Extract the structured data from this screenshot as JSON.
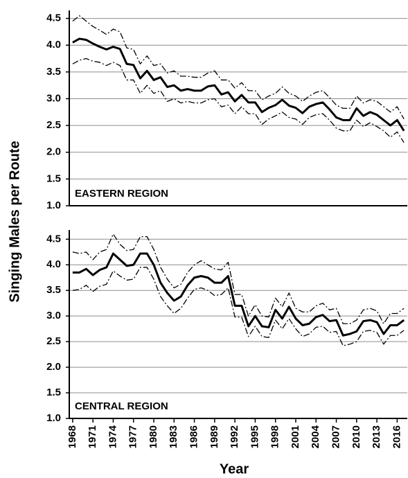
{
  "chart_data": [
    {
      "type": "line",
      "annotation": "EASTERN REGION",
      "y_label": "Singing Males per Route",
      "x": [
        1968,
        1969,
        1970,
        1971,
        1972,
        1973,
        1974,
        1975,
        1976,
        1977,
        1978,
        1979,
        1980,
        1981,
        1982,
        1983,
        1984,
        1985,
        1986,
        1987,
        1988,
        1989,
        1990,
        1991,
        1992,
        1993,
        1994,
        1995,
        1996,
        1997,
        1998,
        1999,
        2000,
        2001,
        2002,
        2003,
        2004,
        2005,
        2006,
        2007,
        2008,
        2009,
        2010,
        2011,
        2012,
        2013,
        2014,
        2015,
        2016,
        2017
      ],
      "xlim": [
        1967.5,
        2017.5
      ],
      "ylim": [
        1.0,
        4.65
      ],
      "yticks": [
        {
          "value": 1,
          "label": "1.0"
        },
        1.5,
        {
          "value": 2,
          "label": "2.0"
        },
        2.5,
        {
          "value": 3,
          "label": "3.0"
        },
        3.5,
        {
          "value": 4,
          "label": "4.0"
        },
        4.5
      ],
      "grid": true,
      "series": [
        {
          "color": "#000000",
          "dash": "solid",
          "values": [
            4.05,
            4.12,
            4.1,
            4.03,
            3.97,
            3.92,
            3.97,
            3.93,
            3.65,
            3.63,
            3.38,
            3.52,
            3.35,
            3.4,
            3.22,
            3.25,
            3.15,
            3.18,
            3.15,
            3.15,
            3.23,
            3.25,
            3.08,
            3.12,
            2.95,
            3.07,
            2.93,
            2.93,
            2.75,
            2.83,
            2.88,
            2.98,
            2.87,
            2.83,
            2.73,
            2.85,
            2.9,
            2.93,
            2.8,
            2.65,
            2.6,
            2.6,
            2.82,
            2.68,
            2.75,
            2.7,
            2.6,
            2.5,
            2.6,
            2.4
          ]
        },
        {
          "color": "#000000",
          "dash": "dashdot",
          "values": [
            4.45,
            4.55,
            4.45,
            4.35,
            4.28,
            4.2,
            4.3,
            4.25,
            3.95,
            3.92,
            3.65,
            3.8,
            3.62,
            3.65,
            3.48,
            3.52,
            3.42,
            3.42,
            3.4,
            3.4,
            3.48,
            3.52,
            3.35,
            3.35,
            3.2,
            3.3,
            3.15,
            3.15,
            2.98,
            3.05,
            3.1,
            3.22,
            3.1,
            3.05,
            2.95,
            3.05,
            3.12,
            3.15,
            3.02,
            2.88,
            2.82,
            2.82,
            3.05,
            2.92,
            2.98,
            2.95,
            2.85,
            2.75,
            2.85,
            2.62
          ]
        },
        {
          "color": "#000000",
          "dash": "dashdot",
          "values": [
            3.65,
            3.72,
            3.75,
            3.7,
            3.68,
            3.62,
            3.68,
            3.62,
            3.35,
            3.35,
            3.1,
            3.25,
            3.1,
            3.15,
            2.95,
            3.0,
            2.92,
            2.95,
            2.92,
            2.92,
            2.98,
            3.0,
            2.85,
            2.88,
            2.72,
            2.85,
            2.72,
            2.72,
            2.52,
            2.62,
            2.68,
            2.75,
            2.65,
            2.62,
            2.52,
            2.65,
            2.7,
            2.72,
            2.6,
            2.45,
            2.4,
            2.4,
            2.6,
            2.48,
            2.55,
            2.48,
            2.4,
            2.28,
            2.38,
            2.18
          ]
        }
      ]
    },
    {
      "type": "line",
      "annotation": "CENTRAL REGION",
      "x_label": "Year",
      "x": [
        1968,
        1969,
        1970,
        1971,
        1972,
        1973,
        1974,
        1975,
        1976,
        1977,
        1978,
        1979,
        1980,
        1981,
        1982,
        1983,
        1984,
        1985,
        1986,
        1987,
        1988,
        1989,
        1990,
        1991,
        1992,
        1993,
        1994,
        1995,
        1996,
        1997,
        1998,
        1999,
        2000,
        2001,
        2002,
        2003,
        2004,
        2005,
        2006,
        2007,
        2008,
        2009,
        2010,
        2011,
        2012,
        2013,
        2014,
        2015,
        2016,
        2017
      ],
      "xlim": [
        1967.5,
        2017.5
      ],
      "xticks": [
        1968,
        1971,
        1974,
        1977,
        1980,
        1983,
        1986,
        1989,
        1992,
        1995,
        1998,
        2001,
        2004,
        2007,
        2010,
        2013,
        2016
      ],
      "ylim": [
        1.0,
        4.68
      ],
      "yticks": [
        {
          "value": 1,
          "label": "1.0"
        },
        1.5,
        {
          "value": 2,
          "label": "2.0"
        },
        2.5,
        {
          "value": 3,
          "label": "3.0"
        },
        3.5,
        {
          "value": 4,
          "label": "4.0"
        },
        4.5
      ],
      "grid": true,
      "series": [
        {
          "color": "#000000",
          "dash": "solid",
          "values": [
            3.85,
            3.85,
            3.92,
            3.8,
            3.9,
            3.95,
            4.22,
            4.1,
            3.98,
            4.0,
            4.22,
            4.22,
            4.0,
            3.65,
            3.45,
            3.3,
            3.38,
            3.6,
            3.75,
            3.78,
            3.75,
            3.65,
            3.65,
            3.78,
            3.2,
            3.2,
            2.8,
            3.0,
            2.8,
            2.78,
            3.12,
            2.95,
            3.18,
            2.95,
            2.82,
            2.85,
            2.98,
            3.02,
            2.9,
            2.92,
            2.62,
            2.65,
            2.7,
            2.9,
            2.92,
            2.88,
            2.65,
            2.82,
            2.82,
            2.92
          ]
        },
        {
          "color": "#000000",
          "dash": "dashdot",
          "values": [
            4.25,
            4.22,
            4.25,
            4.1,
            4.25,
            4.3,
            4.6,
            4.4,
            4.28,
            4.3,
            4.55,
            4.55,
            4.3,
            3.95,
            3.72,
            3.55,
            3.62,
            3.85,
            4.0,
            4.08,
            4.0,
            3.92,
            3.9,
            4.05,
            3.42,
            3.42,
            3.0,
            3.22,
            3.0,
            2.98,
            3.35,
            3.18,
            3.45,
            3.15,
            3.08,
            3.08,
            3.2,
            3.25,
            3.12,
            3.15,
            2.85,
            2.85,
            2.92,
            3.12,
            3.15,
            3.1,
            2.85,
            3.05,
            3.05,
            3.15
          ]
        },
        {
          "color": "#000000",
          "dash": "dashdot",
          "values": [
            3.5,
            3.52,
            3.6,
            3.48,
            3.58,
            3.62,
            3.88,
            3.78,
            3.7,
            3.72,
            3.95,
            3.95,
            3.72,
            3.38,
            3.2,
            3.05,
            3.15,
            3.35,
            3.52,
            3.55,
            3.5,
            3.4,
            3.42,
            3.55,
            2.98,
            2.98,
            2.6,
            2.8,
            2.6,
            2.58,
            2.92,
            2.75,
            2.95,
            2.75,
            2.6,
            2.65,
            2.78,
            2.8,
            2.68,
            2.7,
            2.42,
            2.45,
            2.5,
            2.7,
            2.72,
            2.68,
            2.45,
            2.62,
            2.62,
            2.72
          ]
        }
      ]
    }
  ]
}
